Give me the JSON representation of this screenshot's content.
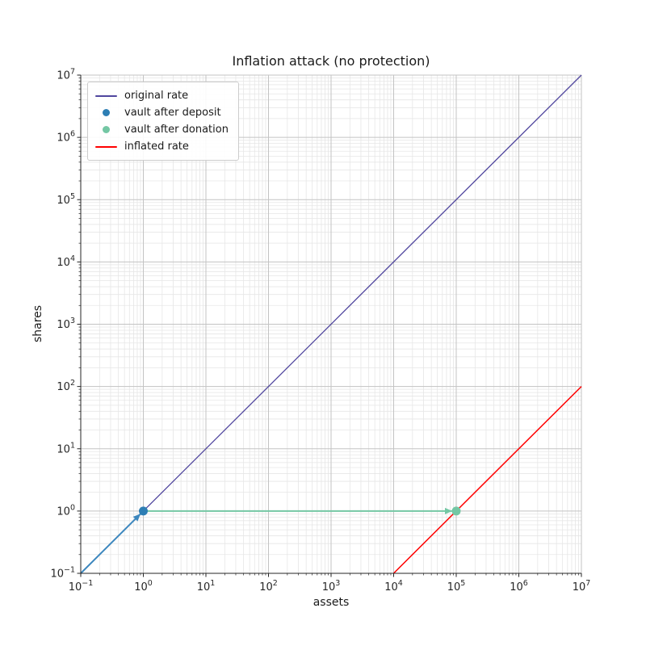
{
  "chart_data": {
    "type": "line",
    "title": "Inflation attack (no protection)",
    "xlabel": "assets",
    "ylabel": "shares",
    "xscale": "log",
    "yscale": "log",
    "xlim": [
      0.1,
      10000000
    ],
    "ylim": [
      0.1,
      10000000
    ],
    "xtick_exponents": [
      -1,
      0,
      1,
      2,
      3,
      4,
      5,
      6,
      7
    ],
    "ytick_exponents": [
      -1,
      0,
      1,
      2,
      3,
      4,
      5,
      6,
      7
    ],
    "grid": {
      "major_color": "#c3c3c3",
      "minor_color": "#e6e6e6",
      "major_on": true,
      "minor_on": true
    },
    "axis_color": "#262626",
    "series": [
      {
        "name": "original rate",
        "color": "#50469e",
        "width": 1.3,
        "points": [
          [
            0.1,
            0.1
          ],
          [
            10000000,
            10000000
          ]
        ]
      },
      {
        "name": "inflated rate",
        "color": "#ff0000",
        "width": 1.5,
        "points": [
          [
            10000,
            0.1
          ],
          [
            10000000,
            100
          ]
        ]
      }
    ],
    "arrows": [
      {
        "name": "deposit-arrow",
        "color": "#3c87be",
        "width": 2,
        "from": [
          0.1,
          0.1
        ],
        "to": [
          1,
          1
        ]
      },
      {
        "name": "donation-arrow",
        "color": "#74c7a4",
        "width": 2,
        "from": [
          1,
          1
        ],
        "to": [
          100000,
          1
        ]
      }
    ],
    "markers": [
      {
        "name": "vault after deposit",
        "color": "#2d7eb4",
        "x": 1,
        "y": 1,
        "r": 5.5
      },
      {
        "name": "vault after donation",
        "color": "#74c7a4",
        "x": 100000,
        "y": 1,
        "r": 5.5
      }
    ],
    "legend": {
      "position": "upper left",
      "items": [
        {
          "label": "original rate",
          "swatch": "line",
          "color": "#50469e"
        },
        {
          "label": "vault after deposit",
          "swatch": "dot",
          "color": "#2d7eb4"
        },
        {
          "label": "vault after donation",
          "swatch": "dot",
          "color": "#74c7a4"
        },
        {
          "label": "inflated rate",
          "swatch": "line",
          "color": "#ff0000"
        }
      ]
    }
  }
}
